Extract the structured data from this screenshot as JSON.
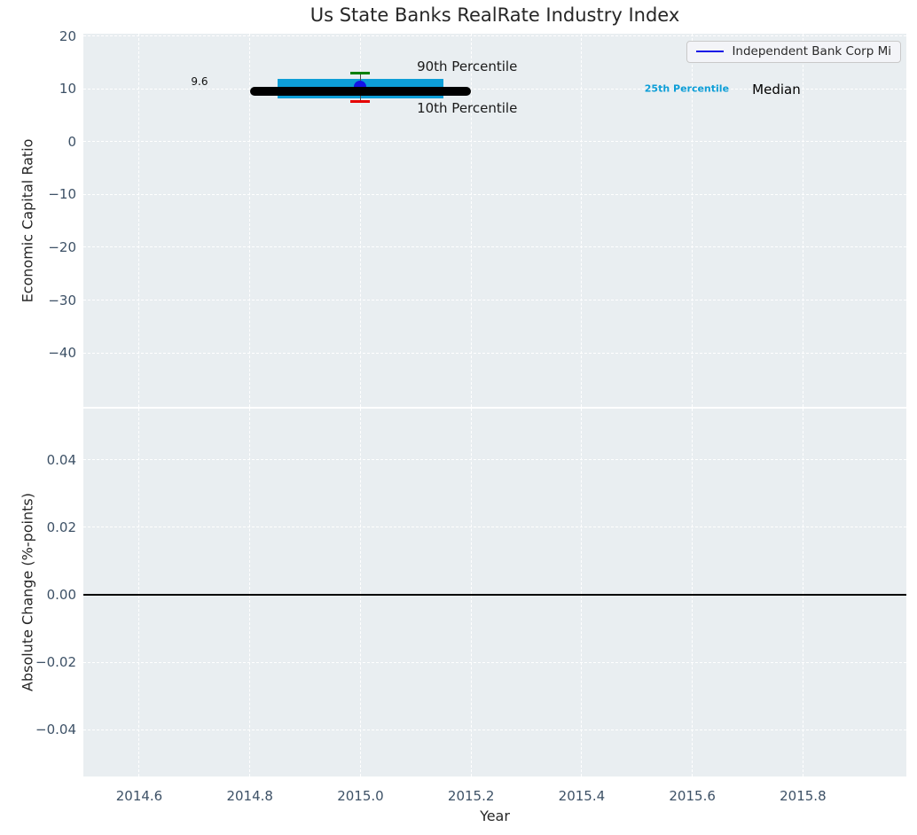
{
  "colors": {
    "figure_bg": "#ffffff",
    "plot_bg": "#e9eef1",
    "grid": "#ffffff",
    "tick_label": "#3d5166",
    "axis_label": "#262626",
    "median_line": "#000000",
    "iqr_bar": "#0d9ed7",
    "p90_cap": "#008000",
    "p10_cap": "#e60000",
    "errorbar_line": "#4d4d4d",
    "company_marker": "#1414e6",
    "zero_line": "#000000",
    "legend_bg": "#f3f4f8",
    "legend_border": "#c9c9c9"
  },
  "chart_data": [
    {
      "id": "economic_capital_ratio",
      "type": "scatter",
      "title": "Us State Banks RealRate Industry Index",
      "ylabel": "Economic Capital Ratio",
      "xlim": [
        2014.499,
        2015.987
      ],
      "ylim": [
        -50.25,
        20.5
      ],
      "yticks": [
        20,
        10,
        0,
        -10,
        -20,
        -30,
        -40
      ],
      "ytick_labels": [
        "20",
        "10",
        "0",
        "−10",
        "−20",
        "−30",
        "−40"
      ],
      "xticks": [
        2014.6,
        2014.8,
        2015.0,
        2015.2,
        2015.4,
        2015.6,
        2015.8
      ],
      "xtick_labels": [
        "2014.6",
        "2014.8",
        "2015.0",
        "2015.2",
        "2015.4",
        "2015.6",
        "2015.8"
      ],
      "grid": true,
      "legend": {
        "position": "upper right",
        "entries": [
          {
            "label": "Independent Bank Corp Mi",
            "color": "#1414e6"
          }
        ]
      },
      "company_point": {
        "x": 2015.0,
        "y": 10.4
      },
      "industry": {
        "x": 2015.0,
        "median": 9.6,
        "median_span": [
          2014.8,
          2015.2
        ],
        "p25": 8.3,
        "p75": 12.0,
        "iqr_span": [
          2014.85,
          2015.15
        ],
        "p10": 7.7,
        "p90": 13.1
      },
      "annotations": [
        {
          "id": "p90-label",
          "text": "90th Percentile",
          "x": 2015.102,
          "y": 14.3,
          "align": "left",
          "size": 15,
          "color": "#1a1a1a",
          "bold": false
        },
        {
          "id": "p10-label",
          "text": "10th Percentile",
          "x": 2015.102,
          "y": 6.3,
          "align": "left",
          "size": 15,
          "color": "#1a1a1a",
          "bold": false
        },
        {
          "id": "median-value-label",
          "text": "9.6",
          "x": 2014.709,
          "y": 11.4,
          "align": "center",
          "size": 12,
          "color": "#111111",
          "bold": false
        },
        {
          "id": "p25-label",
          "text": "25th Percentile",
          "x": 2015.59,
          "y": 10.0,
          "align": "center",
          "size": 11,
          "color": "#0d9ed7",
          "bold": true
        },
        {
          "id": "median-label",
          "text": "Median",
          "x": 2015.752,
          "y": 9.9,
          "align": "center",
          "size": 15,
          "color": "#000000",
          "bold": false
        }
      ]
    },
    {
      "id": "absolute_change",
      "type": "line",
      "ylabel": "Absolute Change (%-points)",
      "xlabel": "Year",
      "xlim": [
        2014.499,
        2015.987
      ],
      "ylim": [
        -0.0538,
        0.0551
      ],
      "yticks": [
        0.04,
        0.02,
        0.0,
        -0.02,
        -0.04
      ],
      "ytick_labels": [
        "0.04",
        "0.02",
        "0.00",
        "−0.02",
        "−0.04"
      ],
      "xticks": [
        2014.6,
        2014.8,
        2015.0,
        2015.2,
        2015.4,
        2015.6,
        2015.8
      ],
      "xtick_labels": [
        "2014.6",
        "2014.8",
        "2015.0",
        "2015.2",
        "2015.4",
        "2015.6",
        "2015.8"
      ],
      "grid": true,
      "zero_line": 0.0
    }
  ]
}
